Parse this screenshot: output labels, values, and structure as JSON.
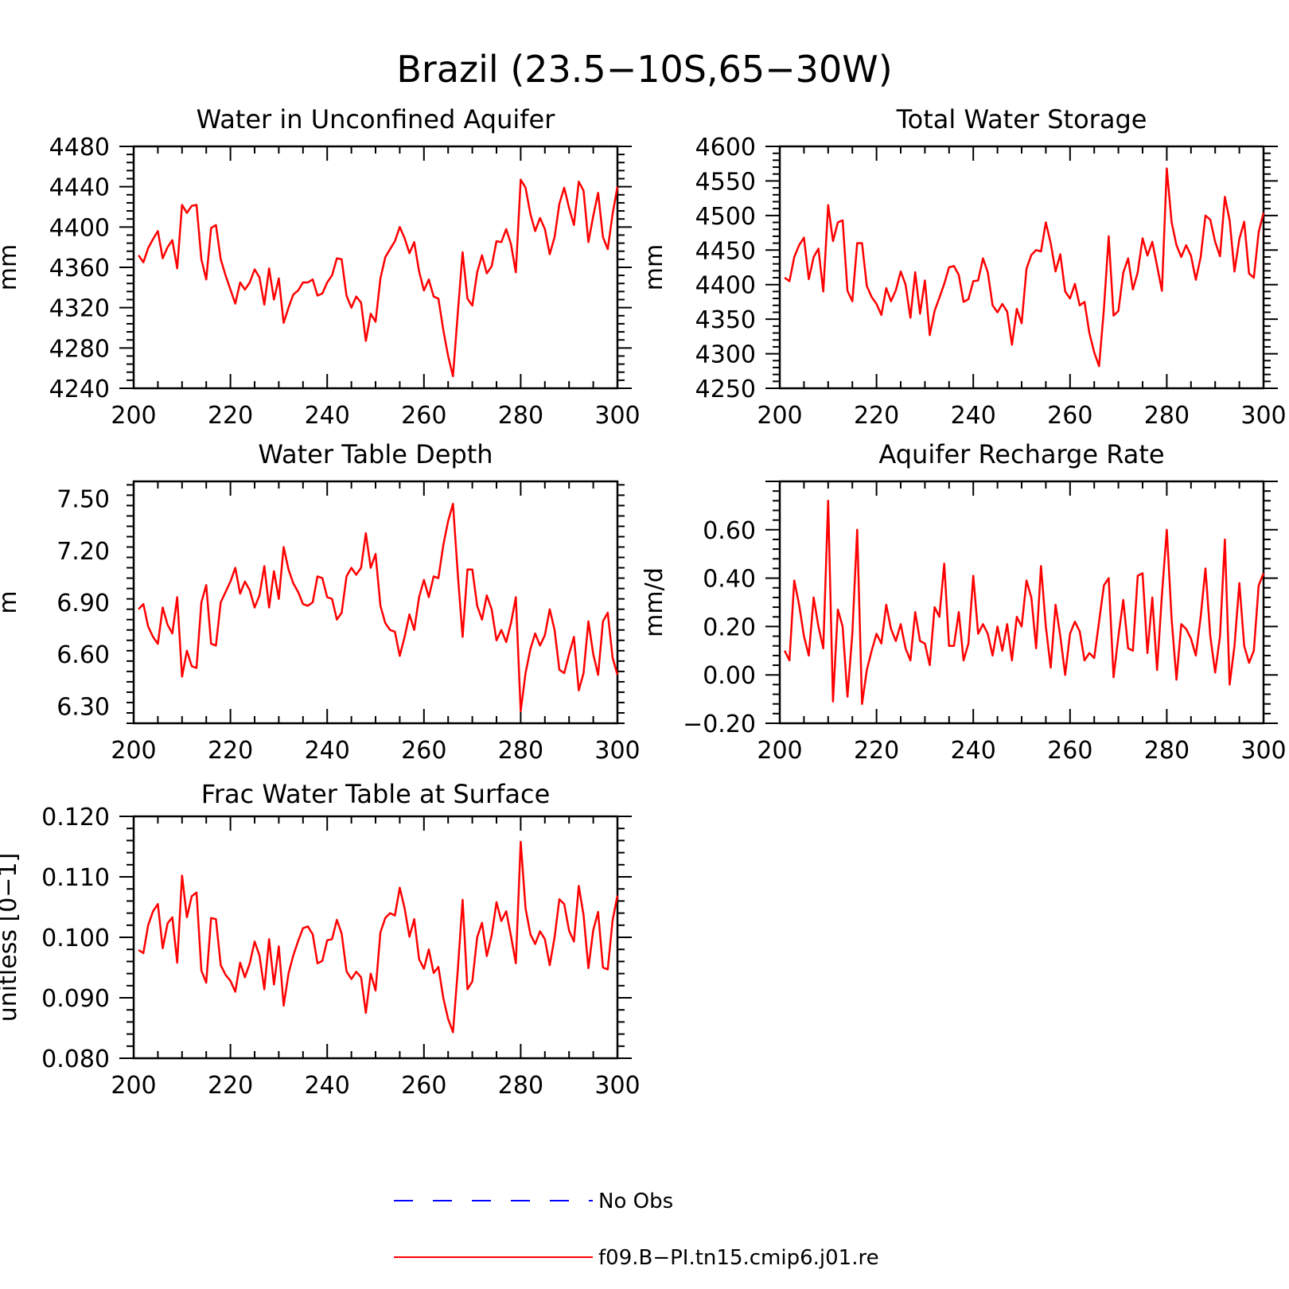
{
  "figure": {
    "title": "Brazil (23.5−10S,65−30W)",
    "line_color": "#ff0000"
  },
  "legend": [
    {
      "label": "No Obs",
      "color": "#0000ff",
      "style": "dashed"
    },
    {
      "label": "f09.B−PI.tn15.cmip6.j01.re",
      "color": "#ff0000",
      "style": "solid"
    }
  ],
  "chart_data": [
    {
      "type": "line",
      "title": "Water in Unconfined Aquifer",
      "ylabel": "mm",
      "xlim": [
        200,
        300
      ],
      "ylim": [
        4240,
        4480
      ],
      "xticks": [
        200,
        220,
        240,
        260,
        280,
        300
      ],
      "yticks": [
        4240,
        4280,
        4320,
        4360,
        4400,
        4440,
        4480
      ],
      "ytick_labels": [
        "4240",
        "4280",
        "4320",
        "4360",
        "4400",
        "4440",
        "4480"
      ],
      "grid": false,
      "series": [
        {
          "x_start": 201,
          "x_step": 1,
          "values": [
            4372,
            4365,
            4379,
            4388,
            4396,
            4369,
            4380,
            4387,
            4359,
            4422,
            4414,
            4421,
            4422,
            4368,
            4348,
            4399,
            4402,
            4368,
            4352,
            4338,
            4324,
            4345,
            4338,
            4345,
            4358,
            4350,
            4323,
            4359,
            4328,
            4349,
            4305,
            4320,
            4333,
            4337,
            4345,
            4345,
            4348,
            4332,
            4334,
            4345,
            4352,
            4369,
            4368,
            4332,
            4320,
            4331,
            4325,
            4287,
            4314,
            4306,
            4349,
            4370,
            4378,
            4386,
            4400,
            4389,
            4374,
            4385,
            4356,
            4337,
            4348,
            4331,
            4329,
            4298,
            4272,
            4252,
            4315,
            4375,
            4329,
            4322,
            4355,
            4372,
            4354,
            4361,
            4386,
            4385,
            4398,
            4383,
            4355,
            4447,
            4439,
            4413,
            4396,
            4409,
            4398,
            4373,
            4390,
            4423,
            4439,
            4419,
            4402,
            4445,
            4436,
            4385,
            4411,
            4434,
            4390,
            4378,
            4413,
            4440
          ]
        }
      ]
    },
    {
      "type": "line",
      "title": "Total Water Storage",
      "ylabel": "mm",
      "xlim": [
        200,
        300
      ],
      "ylim": [
        4250,
        4600
      ],
      "xticks": [
        200,
        220,
        240,
        260,
        280,
        300
      ],
      "yticks": [
        4250,
        4300,
        4350,
        4400,
        4450,
        4500,
        4550,
        4600
      ],
      "ytick_labels": [
        "4250",
        "4300",
        "4350",
        "4400",
        "4450",
        "4500",
        "4550",
        "4600"
      ],
      "grid": false,
      "series": [
        {
          "x_start": 201,
          "x_step": 1,
          "values": [
            4410,
            4405,
            4440,
            4457,
            4468,
            4408,
            4440,
            4452,
            4390,
            4515,
            4463,
            4490,
            4493,
            4391,
            4376,
            4460,
            4460,
            4398,
            4382,
            4372,
            4356,
            4395,
            4376,
            4392,
            4419,
            4400,
            4352,
            4418,
            4358,
            4406,
            4327,
            4362,
            4381,
            4401,
            4425,
            4427,
            4414,
            4375,
            4379,
            4405,
            4406,
            4438,
            4418,
            4370,
            4360,
            4372,
            4361,
            4313,
            4365,
            4344,
            4423,
            4443,
            4450,
            4448,
            4490,
            4460,
            4419,
            4444,
            4390,
            4380,
            4401,
            4370,
            4375,
            4330,
            4302,
            4282,
            4365,
            4470,
            4355,
            4362,
            4417,
            4438,
            4393,
            4418,
            4467,
            4442,
            4462,
            4427,
            4391,
            4568,
            4490,
            4457,
            4440,
            4457,
            4442,
            4407,
            4440,
            4500,
            4494,
            4462,
            4441,
            4527,
            4493,
            4419,
            4466,
            4491,
            4416,
            4410,
            4476,
            4504
          ]
        }
      ]
    },
    {
      "type": "line",
      "title": "Water Table Depth",
      "ylabel": "m",
      "xlim": [
        200,
        300
      ],
      "ylim": [
        6.2,
        7.6
      ],
      "xticks": [
        200,
        220,
        240,
        260,
        280,
        300
      ],
      "yticks": [
        6.3,
        6.6,
        6.9,
        7.2,
        7.5
      ],
      "ytick_labels": [
        "6.30",
        "6.60",
        "6.90",
        "7.20",
        "7.50"
      ],
      "grid": false,
      "series": [
        {
          "x_start": 201,
          "x_step": 1,
          "values": [
            6.86,
            6.89,
            6.76,
            6.7,
            6.66,
            6.87,
            6.77,
            6.72,
            6.93,
            6.47,
            6.62,
            6.53,
            6.52,
            6.9,
            7.0,
            6.66,
            6.65,
            6.9,
            6.96,
            7.02,
            7.1,
            6.95,
            7.02,
            6.97,
            6.87,
            6.94,
            7.11,
            6.87,
            7.08,
            6.92,
            7.22,
            7.09,
            7.01,
            6.96,
            6.89,
            6.88,
            6.9,
            7.05,
            7.04,
            6.93,
            6.92,
            6.8,
            6.84,
            7.05,
            7.1,
            7.06,
            7.1,
            7.3,
            7.1,
            7.18,
            6.88,
            6.78,
            6.74,
            6.73,
            6.59,
            6.7,
            6.83,
            6.74,
            6.93,
            7.03,
            6.93,
            7.05,
            7.04,
            7.23,
            7.37,
            7.47,
            7.06,
            6.7,
            7.09,
            7.09,
            6.88,
            6.8,
            6.94,
            6.86,
            6.68,
            6.74,
            6.67,
            6.78,
            6.93,
            6.27,
            6.49,
            6.63,
            6.72,
            6.65,
            6.71,
            6.86,
            6.74,
            6.51,
            6.49,
            6.6,
            6.7,
            6.39,
            6.49,
            6.79,
            6.6,
            6.48,
            6.79,
            6.84,
            6.58,
            6.48
          ]
        }
      ]
    },
    {
      "type": "line",
      "title": "Aquifer Recharge Rate",
      "ylabel": "mm/d",
      "xlim": [
        200,
        300
      ],
      "ylim": [
        -0.2,
        0.8
      ],
      "xticks": [
        200,
        220,
        240,
        260,
        280,
        300
      ],
      "yticks": [
        -0.2,
        0.0,
        0.2,
        0.4,
        0.6
      ],
      "ytick_labels": [
        "−0.20",
        "0.00",
        "0.20",
        "0.40",
        "0.60"
      ],
      "grid": false,
      "series": [
        {
          "x_start": 201,
          "x_step": 1,
          "values": [
            0.1,
            0.06,
            0.39,
            0.29,
            0.16,
            0.08,
            0.32,
            0.2,
            0.11,
            0.72,
            -0.11,
            0.27,
            0.2,
            -0.09,
            0.17,
            0.6,
            -0.12,
            0.02,
            0.1,
            0.17,
            0.13,
            0.29,
            0.19,
            0.14,
            0.21,
            0.11,
            0.06,
            0.26,
            0.14,
            0.13,
            0.04,
            0.28,
            0.24,
            0.46,
            0.12,
            0.12,
            0.26,
            0.06,
            0.13,
            0.41,
            0.17,
            0.21,
            0.17,
            0.08,
            0.2,
            0.1,
            0.21,
            0.06,
            0.24,
            0.2,
            0.39,
            0.32,
            0.11,
            0.45,
            0.2,
            0.03,
            0.29,
            0.16,
            0.0,
            0.17,
            0.22,
            0.18,
            0.06,
            0.09,
            0.07,
            0.22,
            0.37,
            0.4,
            -0.01,
            0.16,
            0.31,
            0.11,
            0.1,
            0.41,
            0.42,
            0.09,
            0.32,
            0.02,
            0.33,
            0.6,
            0.23,
            -0.02,
            0.21,
            0.19,
            0.15,
            0.08,
            0.24,
            0.44,
            0.16,
            0.01,
            0.16,
            0.56,
            -0.04,
            0.12,
            0.38,
            0.12,
            0.05,
            0.1,
            0.37,
            0.42
          ]
        }
      ]
    },
    {
      "type": "line",
      "title": "Frac Water Table at Surface",
      "ylabel": "unitless [0−1]",
      "xlim": [
        200,
        300
      ],
      "ylim": [
        0.08,
        0.12
      ],
      "xticks": [
        200,
        220,
        240,
        260,
        280,
        300
      ],
      "yticks": [
        0.08,
        0.09,
        0.1,
        0.11,
        0.12
      ],
      "ytick_labels": [
        "0.080",
        "0.090",
        "0.100",
        "0.110",
        "0.120"
      ],
      "grid": false,
      "series": [
        {
          "x_start": 201,
          "x_step": 1,
          "values": [
            0.0979,
            0.0974,
            0.102,
            0.1043,
            0.1055,
            0.0982,
            0.1023,
            0.1033,
            0.0958,
            0.1102,
            0.1033,
            0.1068,
            0.1074,
            0.0945,
            0.0925,
            0.1032,
            0.103,
            0.0954,
            0.0938,
            0.0928,
            0.091,
            0.0958,
            0.0934,
            0.0957,
            0.0993,
            0.097,
            0.0914,
            0.0997,
            0.0922,
            0.0985,
            0.0887,
            0.094,
            0.097,
            0.0994,
            0.1015,
            0.1018,
            0.1005,
            0.0957,
            0.0961,
            0.0995,
            0.0997,
            0.1029,
            0.1006,
            0.0944,
            0.0931,
            0.0943,
            0.0934,
            0.0875,
            0.094,
            0.0912,
            0.1008,
            0.1032,
            0.104,
            0.1036,
            0.1082,
            0.1048,
            0.1001,
            0.103,
            0.0964,
            0.0948,
            0.098,
            0.0941,
            0.0951,
            0.09,
            0.0865,
            0.0843,
            0.0947,
            0.1062,
            0.0914,
            0.0927,
            0.1,
            0.1024,
            0.0969,
            0.1003,
            0.1058,
            0.1027,
            0.1043,
            0.1002,
            0.0957,
            0.1158,
            0.1048,
            0.1005,
            0.0989,
            0.101,
            0.0997,
            0.0954,
            0.1,
            0.1063,
            0.1055,
            0.1011,
            0.0993,
            0.1085,
            0.1037,
            0.0949,
            0.1012,
            0.1042,
            0.095,
            0.0947,
            0.1028,
            0.1069
          ]
        }
      ]
    }
  ]
}
